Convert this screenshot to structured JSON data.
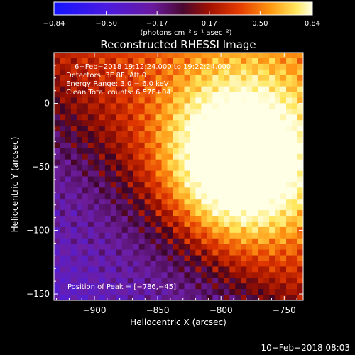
{
  "chart_data": {
    "type": "heatmap",
    "title": "Reconstructed RHESSI Image",
    "xlabel": "Heliocentric X (arcsec)",
    "ylabel": "Heliocentric Y (arcsec)",
    "xlim": [
      -932,
      -735
    ],
    "ylim": [
      -155,
      40
    ],
    "x_ticks": [
      -900,
      -850,
      -800,
      -750
    ],
    "y_ticks": [
      0,
      -50,
      -100,
      -150
    ],
    "x_tick_labels": [
      "−900",
      "−850",
      "−800",
      "−750"
    ],
    "y_tick_labels": [
      "0",
      "−50",
      "−100",
      "−150"
    ],
    "colorbar": {
      "range": [
        -0.84,
        0.84
      ],
      "ticks": [
        -0.84,
        -0.5,
        -0.17,
        0.17,
        0.5,
        0.84
      ],
      "tick_labels": [
        "−0.84",
        "−0.50",
        "−0.17",
        "0.17",
        "0.50",
        "0.84"
      ],
      "units": "(photons cm⁻² s⁻¹ asec⁻²)",
      "colormap": "blue-purple-red-yellow-white"
    },
    "annotations": [
      "6−Feb−2018 19:12:24.000 to 19:22:24.000",
      "Detectors: 3F 8F, Att 0",
      "Energy Range: 3.0 − 6.0 keV",
      "Clean     Total counts: 6.57E+04"
    ],
    "peak_label": "Position of Peak = [−786,−45]",
    "peak_position": [
      -786,
      -45
    ],
    "footer_date": "10−Feb−2018 08:03"
  },
  "colors": {
    "background": "#000000",
    "text": "#ffffff",
    "cmap": [
      "#1b1bff",
      "#5a1ad6",
      "#6e1a9a",
      "#520a3a",
      "#a01000",
      "#e23c00",
      "#ff9800",
      "#ffe850",
      "#ffffe8"
    ]
  }
}
